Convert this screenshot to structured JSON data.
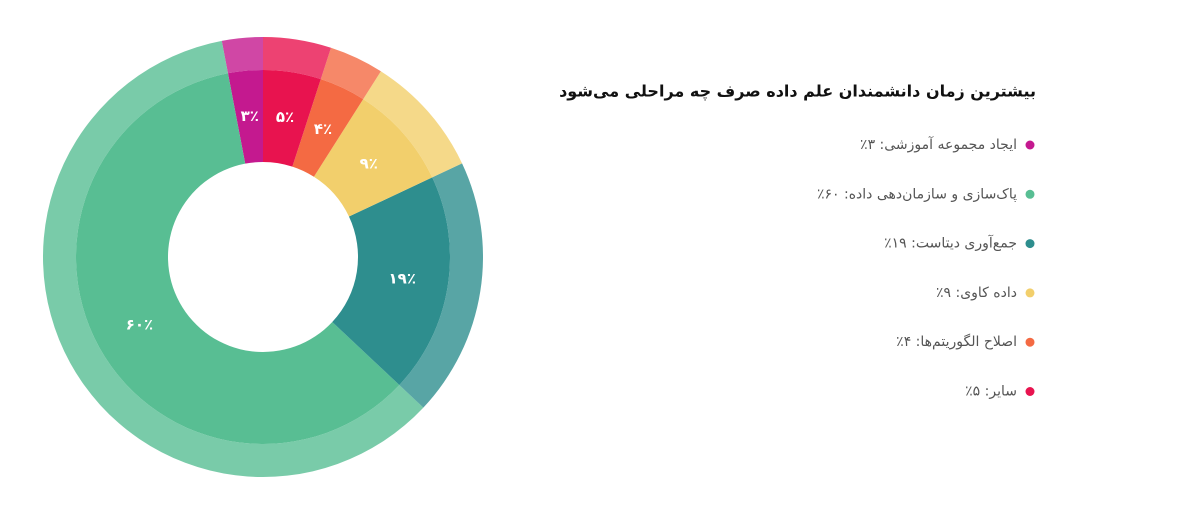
{
  "chart_data": {
    "type": "donut",
    "title": "بیشترین زمان دانشمندان علم داده صرف چه مراحلی می‌شود",
    "categories": [
      "ایجاد مجموعه آموزشی: ۳٪",
      "پاک‌سازی و سازمان‌دهی داده: ۶۰٪",
      "جمع‌آوری دیتاست: ۱۹٪",
      "داده کاوی: ۹٪",
      "اصلاح الگوریتم‌ها: ۴٪",
      "سایر: ۵٪"
    ],
    "values": [
      3,
      60,
      19,
      9,
      4,
      5
    ],
    "value_labels": [
      "۳٪",
      "۶۰٪",
      "۱۹٪",
      "۹٪",
      "۴٪",
      "۵٪"
    ],
    "colors": [
      "#c4198f",
      "#58be93",
      "#2e8e8e",
      "#f2cf6c",
      "#f46a43",
      "#e8134f"
    ]
  }
}
